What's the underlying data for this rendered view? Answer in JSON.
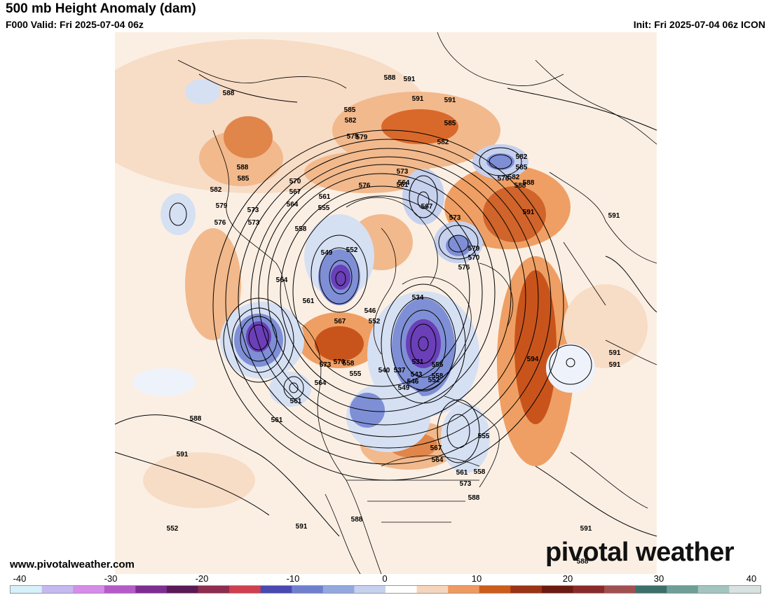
{
  "header": {
    "title": "500 mb Height Anomaly (dam)",
    "valid": "F000 Valid: Fri 2025-07-04 06z",
    "init": "Init: Fri 2025-07-04 06z ICON"
  },
  "footer": {
    "website": "www.pivotalweather.com",
    "brand": "pivotal weather"
  },
  "colorbar": {
    "ticks": [
      "-40",
      "-30",
      "-20",
      "-10",
      "0",
      "10",
      "20",
      "30",
      "40"
    ],
    "colors": [
      "#d7f1fb",
      "#c5b9f0",
      "#d68ce9",
      "#b45bc9",
      "#7e2d92",
      "#5a1a55",
      "#8e2d4f",
      "#cf3f4d",
      "#4a49b2",
      "#6f7fd0",
      "#94a8df",
      "#c6d1ee",
      "#ffffff",
      "#f6d5bd",
      "#ee9a61",
      "#cc5c1a",
      "#9a3415",
      "#6b1a12",
      "#8a2b2b",
      "#a0504f",
      "#3d6f6a",
      "#6f9e97",
      "#a4c4bf",
      "#d8e2e0"
    ]
  },
  "map": {
    "colors": {
      "positive_light": "#f7dcc6",
      "positive_mid": "#ef9f63",
      "positive_strong": "#c8541c",
      "negative_light": "#d6e0f3",
      "negative_mid": "#7f8fd6",
      "negative_strong": "#6a3fb8",
      "contour": "#000000",
      "coastline": "#000000"
    },
    "contour_labels": [
      "588",
      "591",
      "585",
      "582",
      "579",
      "588",
      "591",
      "585",
      "582",
      "573",
      "579",
      "576",
      "588",
      "585",
      "582",
      "579",
      "576",
      "573",
      "570",
      "567",
      "564",
      "561",
      "555",
      "558",
      "549",
      "552",
      "564",
      "561",
      "567",
      "546",
      "552",
      "534",
      "531",
      "573",
      "570",
      "558",
      "555",
      "540",
      "537",
      "543",
      "546",
      "549",
      "552",
      "555",
      "558",
      "564",
      "561",
      "573",
      "564",
      "561",
      "567",
      "573",
      "579",
      "570",
      "576",
      "582",
      "585",
      "588",
      "576",
      "582",
      "588",
      "591",
      "591",
      "591",
      "594",
      "591",
      "591",
      "588",
      "588",
      "591",
      "591",
      "588",
      "573",
      "561",
      "588",
      "591",
      "552",
      "555",
      "567",
      "564",
      "561",
      "558"
    ]
  }
}
